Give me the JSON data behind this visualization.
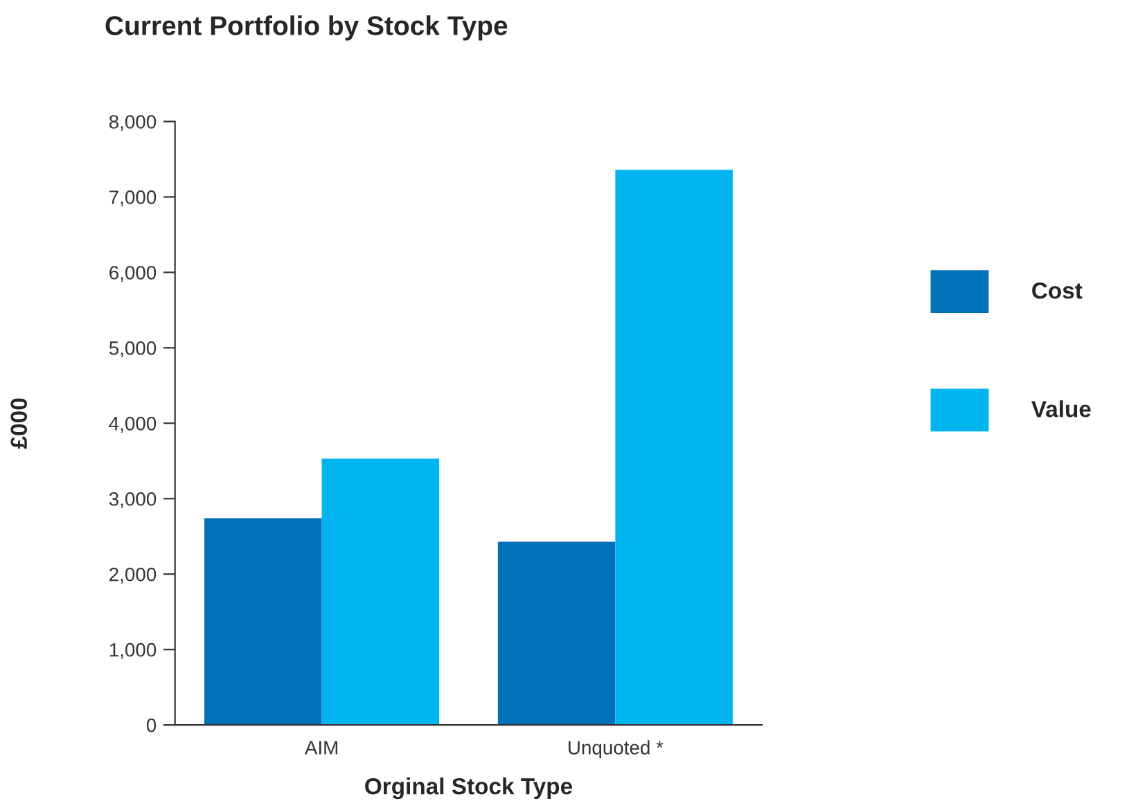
{
  "chart_data": {
    "type": "bar",
    "title": "Current Portfolio by Stock Type",
    "xlabel": "Orginal Stock Type",
    "ylabel": "£000",
    "categories": [
      "AIM",
      "Unquoted *"
    ],
    "series": [
      {
        "name": "Cost",
        "color": "#0070b8",
        "values": [
          2740,
          2430
        ]
      },
      {
        "name": "Value",
        "color": "#00b5ef",
        "values": [
          3530,
          7360
        ]
      }
    ],
    "ylim": [
      0,
      8000
    ],
    "yticks": [
      {
        "value": 0,
        "label": "0"
      },
      {
        "value": 1000,
        "label": "1,000"
      },
      {
        "value": 2000,
        "label": "2,000"
      },
      {
        "value": 3000,
        "label": "3,000"
      },
      {
        "value": 4000,
        "label": "4,000"
      },
      {
        "value": 5000,
        "label": "5,000"
      },
      {
        "value": 6000,
        "label": "6,000"
      },
      {
        "value": 7000,
        "label": "7,000"
      },
      {
        "value": 8000,
        "label": "8,000"
      }
    ],
    "grid": false,
    "legend": "right"
  }
}
